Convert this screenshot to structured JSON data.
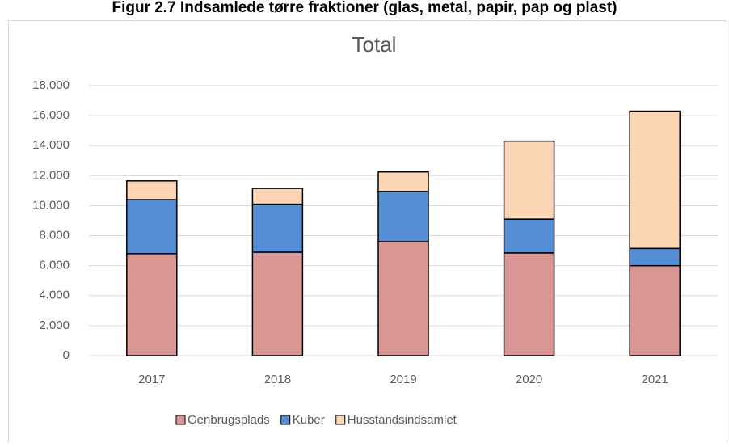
{
  "chart_data": {
    "type": "stacked_bar",
    "heading": "Figur 2.7 Indsamlede tørre fraktioner (glas, metal, papir, pap og plast)",
    "title": "Total",
    "categories": [
      "2017",
      "2018",
      "2019",
      "2020",
      "2021"
    ],
    "series": [
      {
        "name": "Genbrugsplads",
        "color": "#d99694",
        "values": [
          6800,
          6900,
          7600,
          6850,
          6000
        ]
      },
      {
        "name": "Kuber",
        "color": "#558ed5",
        "values": [
          3600,
          3200,
          3350,
          2250,
          1150
        ]
      },
      {
        "name": "Husstandsindsamlet",
        "color": "#fcd5b5",
        "values": [
          1250,
          1050,
          1300,
          5200,
          9150
        ]
      }
    ],
    "ylim": [
      0,
      18000
    ],
    "yticks": [
      0,
      {
        "value": 2000,
        "label": "2.000"
      },
      {
        "value": 4000,
        "label": "4.000"
      },
      {
        "value": 6000,
        "label": "6.000"
      },
      {
        "value": 8000,
        "label": "8.000"
      },
      {
        "value": 10000,
        "label": "10.000"
      },
      {
        "value": 12000,
        "label": "12.000"
      },
      {
        "value": 14000,
        "label": "14.000"
      },
      {
        "value": 16000,
        "label": "16.000"
      },
      {
        "value": 18000,
        "label": "18.000"
      }
    ],
    "grid": true,
    "legend": "bottom"
  }
}
